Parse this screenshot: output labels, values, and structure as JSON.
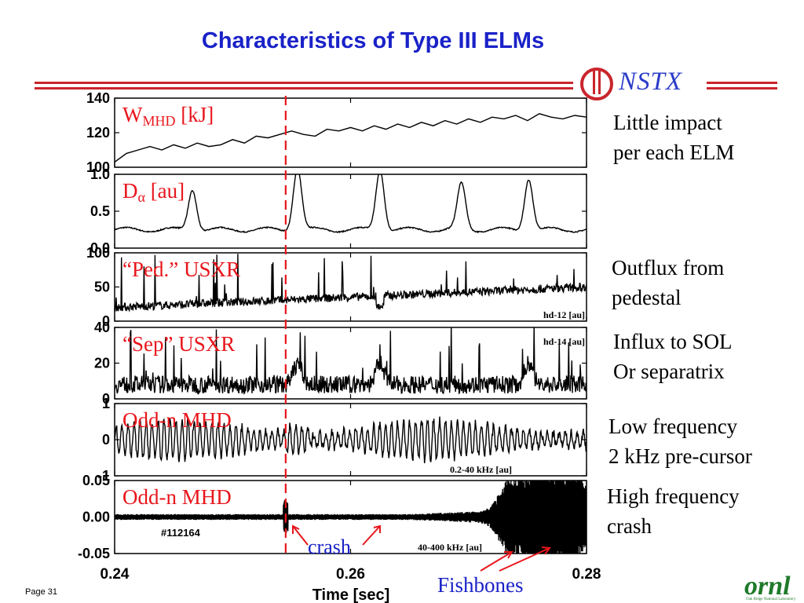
{
  "page": {
    "title": "Characteristics of Type III ELMs",
    "logo_text": "NSTX",
    "page_label": "Page 31",
    "ornl_logo": "ornl",
    "ornl_sub": "Oak Ridge National Laboratory"
  },
  "annotations": {
    "side_notes": [
      {
        "line1": "Little impact",
        "line2": "per each ELM"
      },
      {
        "line1": "Outflux from",
        "line2": "pedestal"
      },
      {
        "line1": "Influx to SOL",
        "line2": "Or separatrix"
      },
      {
        "line1": "Low frequency",
        "line2": "2 kHz pre-cursor"
      },
      {
        "line1": "High frequency",
        "line2": "crash"
      }
    ],
    "crash": "crash",
    "fishbones": "Fishbones",
    "shot": "#112164",
    "marker_time": 0.2545
  },
  "chart_data": {
    "type": "line",
    "xlabel": "Time [sec]",
    "xlim": [
      0.24,
      0.28
    ],
    "xticks": [
      "0.24",
      "0.26",
      "0.28"
    ],
    "xtick_values": [
      0.24,
      0.26,
      0.28
    ],
    "panels": [
      {
        "label": "W",
        "label_sub": "MHD",
        "label_tail": " [kJ]",
        "label_color": "#e8161c",
        "ylim": [
          100,
          140
        ],
        "yticks": [
          "100",
          "120",
          "140"
        ],
        "ytick_values": [
          100,
          120,
          140
        ],
        "channel": "",
        "series_kind": "smooth",
        "x": [
          0.24,
          0.241,
          0.242,
          0.243,
          0.244,
          0.245,
          0.246,
          0.247,
          0.248,
          0.249,
          0.25,
          0.251,
          0.252,
          0.253,
          0.254,
          0.255,
          0.256,
          0.257,
          0.258,
          0.259,
          0.26,
          0.261,
          0.262,
          0.263,
          0.264,
          0.265,
          0.266,
          0.267,
          0.268,
          0.269,
          0.27,
          0.271,
          0.272,
          0.273,
          0.274,
          0.275,
          0.276,
          0.277,
          0.278,
          0.279,
          0.28
        ],
        "y": [
          103,
          108,
          110,
          112,
          110,
          113,
          111,
          114,
          112,
          113,
          116,
          114,
          118,
          117,
          119,
          121,
          119,
          118,
          122,
          121,
          123,
          121,
          124,
          122,
          125,
          123,
          126,
          124,
          127,
          125,
          128,
          126,
          129,
          128,
          130,
          127,
          131,
          129,
          128,
          130,
          129
        ]
      },
      {
        "label": "D",
        "label_greek": "α",
        "label_tail": " [au]",
        "label_color": "#e8161c",
        "ylim": [
          0,
          1
        ],
        "yticks": [
          "0.0",
          "0.5",
          "1.0"
        ],
        "ytick_values": [
          0,
          0.5,
          1
        ],
        "channel": "",
        "series_kind": "peaks",
        "baseline": 0.25,
        "peaks": [
          {
            "x": 0.2466,
            "h": 0.55
          },
          {
            "x": 0.2555,
            "h": 0.85
          },
          {
            "x": 0.2625,
            "h": 0.82
          },
          {
            "x": 0.2694,
            "h": 0.62
          },
          {
            "x": 0.2751,
            "h": 0.7
          }
        ]
      },
      {
        "label": "“Ped.” USXR",
        "label_color": "#e8161c",
        "ylim": [
          0,
          100
        ],
        "yticks": [
          "0",
          "50",
          "100"
        ],
        "ytick_values": [
          0,
          50,
          100
        ],
        "channel": "hd-12 [au]",
        "series_kind": "noisy_ramp",
        "start": 20,
        "end": 50,
        "spike_max": 100
      },
      {
        "label": "“Sep” USXR",
        "label_color": "#e8161c",
        "ylim": [
          0,
          40
        ],
        "yticks": [
          "0",
          "20",
          "40"
        ],
        "ytick_values": [
          0,
          20,
          40
        ],
        "channel": "hd-14 [au]",
        "series_kind": "noisy_spikes",
        "base": 6,
        "spike_max": 40
      },
      {
        "label": "Odd-n MHD",
        "label_color": "#e8161c",
        "ylim": [
          -1,
          1
        ],
        "yticks": [
          "-1",
          "0",
          "1"
        ],
        "ytick_values": [
          -1,
          0,
          1
        ],
        "channel": "0.2-40 kHz [au]",
        "series_kind": "oscillation",
        "amp": 0.45
      },
      {
        "label": "Odd-n MHD",
        "label_color": "#e8161c",
        "ylim": [
          -0.05,
          0.05
        ],
        "yticks": [
          "-0.05",
          "0.00",
          "0.05"
        ],
        "ytick_values": [
          -0.05,
          0,
          0.05
        ],
        "channel": "40-400 kHz [au]",
        "series_kind": "bursts",
        "base_amp": 0.004,
        "bursts": [
          {
            "x": 0.2735,
            "w": 0.0012,
            "a": 0.045
          },
          {
            "x": 0.2755,
            "w": 0.0012,
            "a": 0.05
          },
          {
            "x": 0.2772,
            "w": 0.0012,
            "a": 0.045
          },
          {
            "x": 0.279,
            "w": 0.0014,
            "a": 0.05
          }
        ]
      }
    ]
  }
}
